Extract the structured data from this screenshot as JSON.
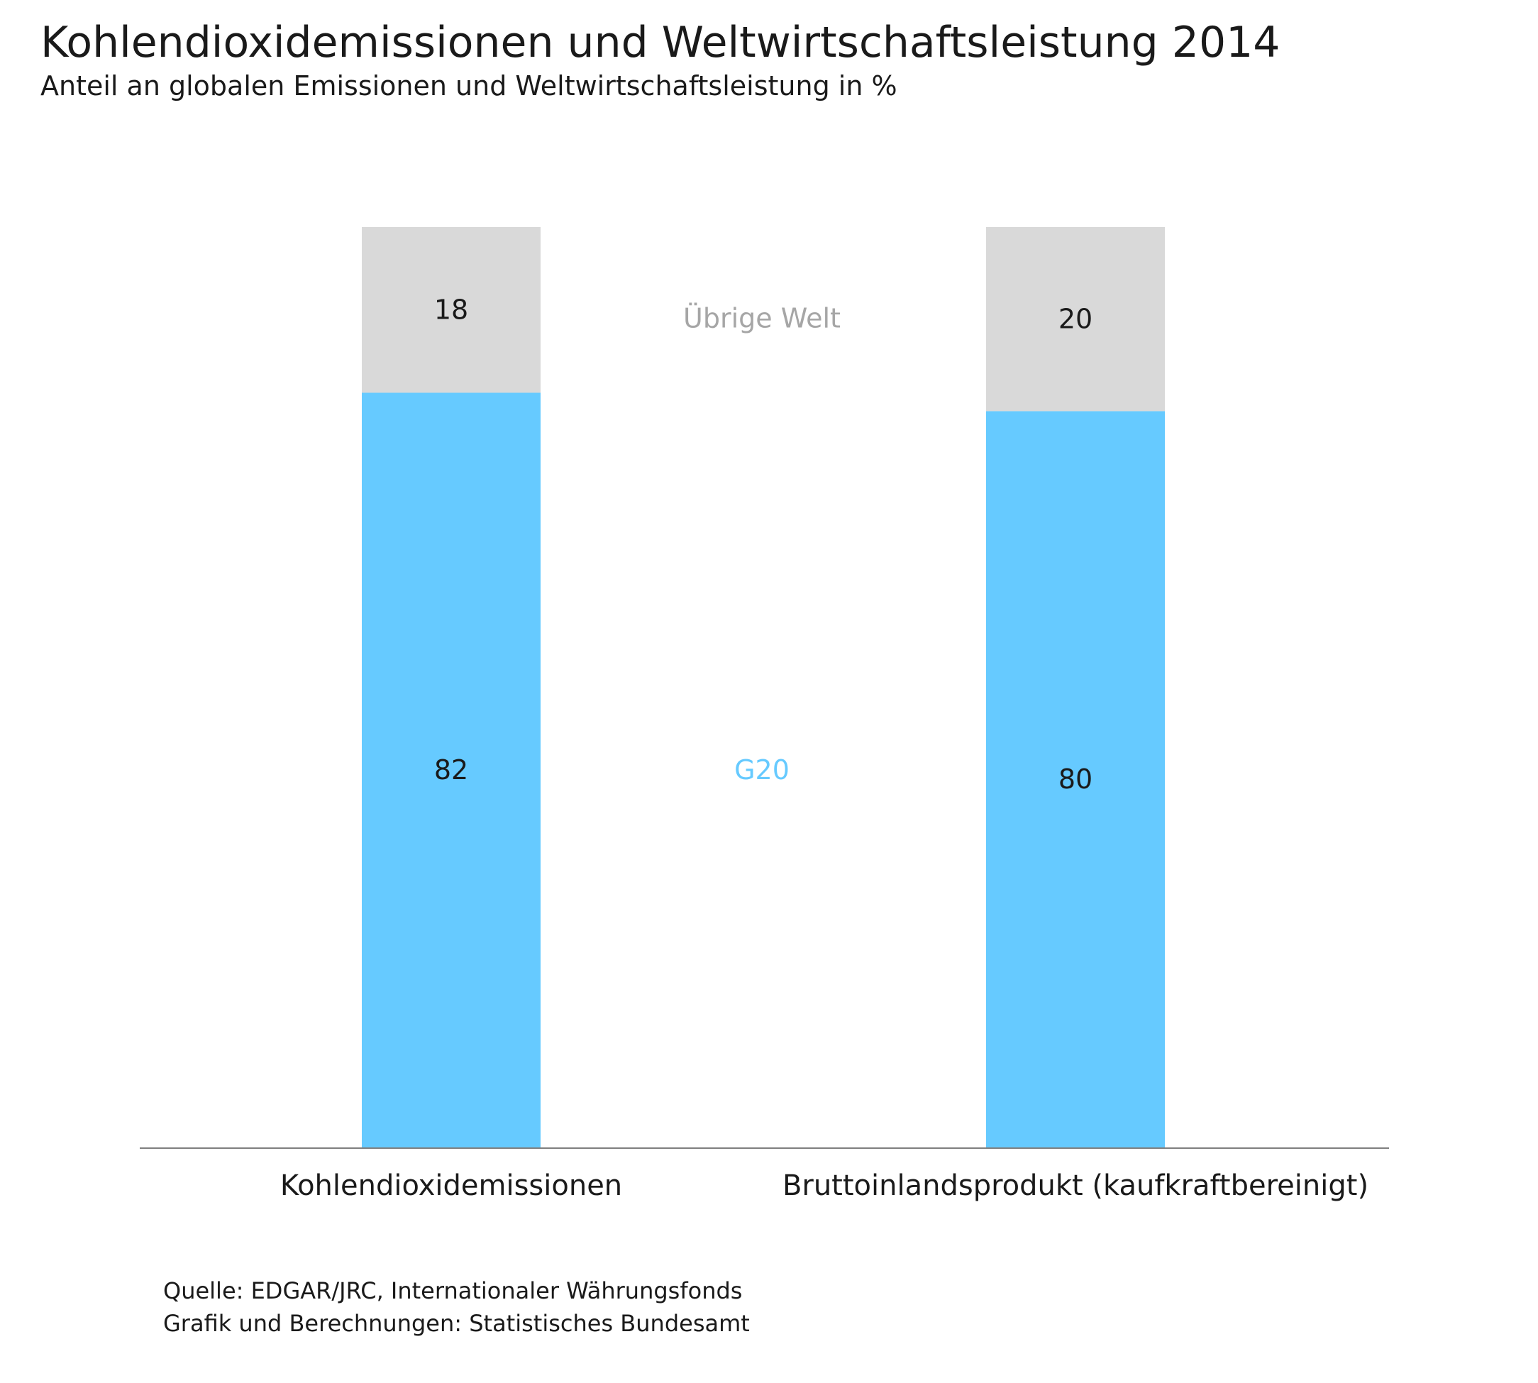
{
  "title": "Kohlendioxidemissionen und Weltwirtschaftsleistung 2014",
  "subtitle": "Anteil an globalen Emissionen und Weltwirtschaftsleistung in %",
  "source": {
    "line1": "Quelle: EDGAR/JRC, Internationaler Währungsfonds",
    "line2": "Grafik und Berechnungen: Statistisches Bundesamt"
  },
  "colors": {
    "g20": "#66CAFF",
    "rest": "#D9D9D9",
    "axis": "#7f7f7f",
    "g20_label": "#66CAFF",
    "rest_label": "#A6A6A6",
    "text": "#1a1a1a"
  },
  "chart_data": {
    "type": "bar",
    "stacked": true,
    "categories": [
      "Kohlendioxidemissionen",
      "Bruttoinlandsprodukt (kaufkraftbereinigt)"
    ],
    "series": [
      {
        "name": "G20",
        "values": [
          82,
          80
        ]
      },
      {
        "name": "Übrige Welt",
        "values": [
          18,
          20
        ]
      }
    ],
    "ylim": [
      0,
      100
    ],
    "legend": "inline-center",
    "grid": false
  }
}
